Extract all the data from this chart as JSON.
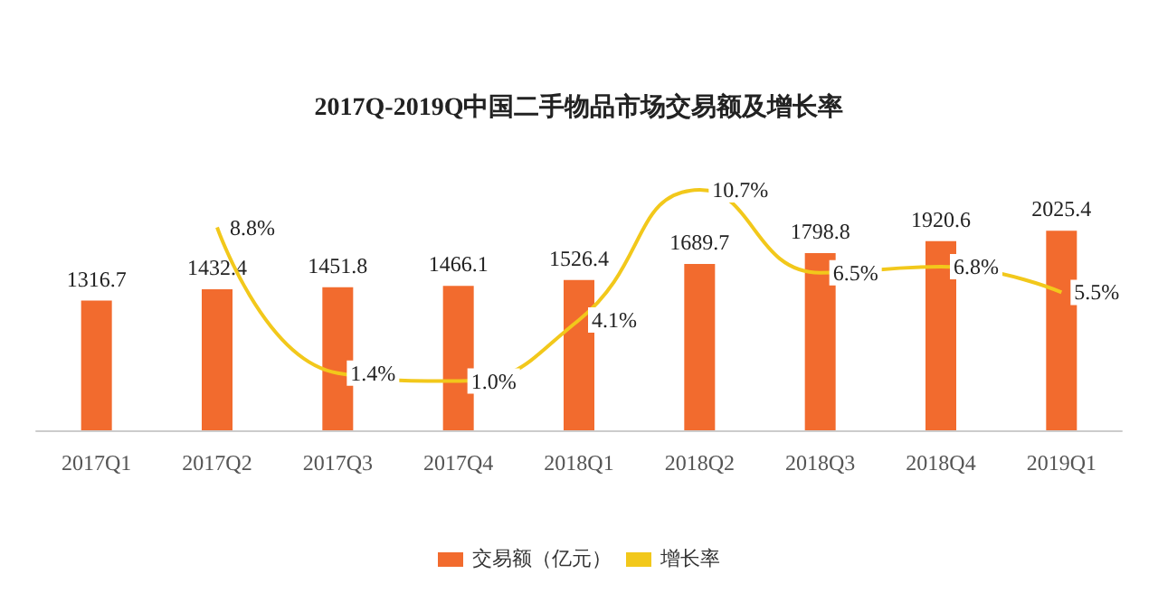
{
  "chart_data": {
    "type": "bar",
    "title": "2017Q-2019Q中国二手物品市场交易额及增长率",
    "categories": [
      "2017Q1",
      "2017Q2",
      "2017Q3",
      "2017Q4",
      "2018Q1",
      "2018Q2",
      "2018Q3",
      "2018Q4",
      "2019Q1"
    ],
    "series": [
      {
        "name": "交易额（亿元）",
        "color": "#f26b2e",
        "values": [
          1316.7,
          1432.4,
          1451.8,
          1466.1,
          1526.4,
          1689.7,
          1798.8,
          1920.6,
          2025.4
        ],
        "value_labels": [
          "1316.7",
          "1432.4",
          "1451.8",
          "1466.1",
          "1526.4",
          "1689.7",
          "1798.8",
          "1920.6",
          "2025.4"
        ]
      },
      {
        "name": "增长率",
        "type": "line",
        "axis": "y2",
        "color": "#f2c81b",
        "values": [
          null,
          8.8,
          1.4,
          1.0,
          4.1,
          10.7,
          6.5,
          6.8,
          5.5
        ],
        "value_labels": [
          null,
          "8.8%",
          "1.4%",
          "1.0%",
          "4.1%",
          "10.7%",
          "6.5%",
          "6.8%",
          "5.5%"
        ]
      }
    ],
    "legend": "bottom",
    "grid": false,
    "marker": "none"
  }
}
